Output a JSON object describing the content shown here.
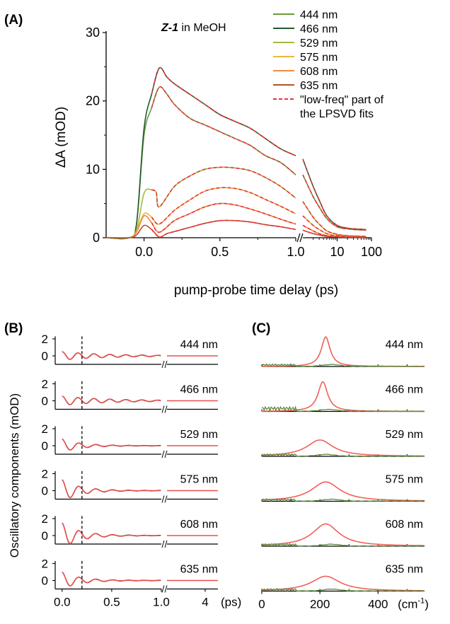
{
  "figure": {
    "panel_a_label": "(A)",
    "panel_b_label": "(B)",
    "panel_c_label": "(C)"
  },
  "chart_data": [
    {
      "type": "line",
      "panel": "A",
      "annotation_bold": "Z-1",
      "annotation_rest": " in MeOH",
      "xlabel": "pump-probe time delay (ps)",
      "ylabel": "ΔA (mOD)",
      "x_ticks_linear": [
        "0.0",
        "0.5",
        "1.0"
      ],
      "x_ticks_log": [
        "10",
        "100"
      ],
      "y_ticks": [
        "0",
        "10",
        "20",
        "30"
      ],
      "ylim": [
        0,
        30
      ],
      "xlim_linear": [
        -0.25,
        1.0
      ],
      "xlim_log": [
        1,
        100
      ],
      "legend": [
        "444 nm",
        "466 nm",
        "529 nm",
        "575 nm",
        "608 nm",
        "635 nm"
      ],
      "fit_legend": [
        "\"low-freq\" part of",
        "the LPSVD fits"
      ],
      "colors": {
        "444 nm": "#6b9a3a",
        "466 nm": "#1f5c2e",
        "529 nm": "#a8b83a",
        "575 nm": "#e8b83a",
        "608 nm": "#f08a3c",
        "635 nm": "#b5532c",
        "fit": "#e8323c"
      },
      "series": [
        {
          "name": "444 nm",
          "linear": [
            [
              -0.25,
              0
            ],
            [
              -0.1,
              0
            ],
            [
              -0.05,
              2
            ],
            [
              0,
              15
            ],
            [
              0.05,
              19
            ],
            [
              0.1,
              22
            ],
            [
              0.15,
              21
            ],
            [
              0.2,
              19.5
            ],
            [
              0.3,
              17.5
            ],
            [
              0.4,
              16.5
            ],
            [
              0.5,
              15.5
            ],
            [
              0.6,
              14.5
            ],
            [
              0.7,
              13.5
            ],
            [
              0.8,
              12
            ],
            [
              0.9,
              11
            ],
            [
              1.0,
              9.2
            ]
          ],
          "log": [
            [
              1,
              9.2
            ],
            [
              2,
              6
            ],
            [
              3,
              4.5
            ],
            [
              5,
              2.8
            ],
            [
              10,
              1.6
            ],
            [
              20,
              1.3
            ],
            [
              30,
              1.2
            ],
            [
              70,
              1.1
            ]
          ]
        },
        {
          "name": "466 nm",
          "linear": [
            [
              -0.25,
              0
            ],
            [
              -0.1,
              0
            ],
            [
              -0.05,
              2
            ],
            [
              0,
              16
            ],
            [
              0.05,
              21
            ],
            [
              0.1,
              24.8
            ],
            [
              0.15,
              23.5
            ],
            [
              0.2,
              22.5
            ],
            [
              0.3,
              21
            ],
            [
              0.4,
              19.5
            ],
            [
              0.5,
              18
            ],
            [
              0.6,
              17
            ],
            [
              0.7,
              16
            ],
            [
              0.8,
              14.5
            ],
            [
              0.9,
              13
            ],
            [
              1.0,
              12
            ]
          ],
          "log": [
            [
              1,
              11.5
            ],
            [
              2,
              7.5
            ],
            [
              3,
              5.5
            ],
            [
              5,
              3.2
            ],
            [
              10,
              1.8
            ],
            [
              20,
              1.4
            ],
            [
              30,
              1.3
            ],
            [
              70,
              1.2
            ]
          ]
        },
        {
          "name": "529 nm",
          "linear": [
            [
              -0.25,
              0
            ],
            [
              -0.1,
              0
            ],
            [
              -0.05,
              1
            ],
            [
              0,
              6.5
            ],
            [
              0.05,
              7
            ],
            [
              0.08,
              6.6
            ],
            [
              0.1,
              4.5
            ],
            [
              0.2,
              7.5
            ],
            [
              0.3,
              9
            ],
            [
              0.4,
              10
            ],
            [
              0.5,
              10.3
            ],
            [
              0.6,
              10.2
            ],
            [
              0.7,
              9.8
            ],
            [
              0.8,
              8.8
            ],
            [
              0.9,
              7.5
            ],
            [
              1.0,
              5.8
            ]
          ],
          "log": [
            [
              1,
              5.3
            ],
            [
              2,
              3
            ],
            [
              3,
              2
            ],
            [
              5,
              1
            ],
            [
              10,
              0.5
            ],
            [
              20,
              0.3
            ],
            [
              70,
              0.2
            ]
          ]
        },
        {
          "name": "575 nm",
          "linear": [
            [
              -0.25,
              0
            ],
            [
              -0.1,
              0
            ],
            [
              -0.05,
              1
            ],
            [
              0,
              3.5
            ],
            [
              0.05,
              3
            ],
            [
              0.1,
              2
            ],
            [
              0.2,
              4
            ],
            [
              0.3,
              5.5
            ],
            [
              0.4,
              6.8
            ],
            [
              0.5,
              7.3
            ],
            [
              0.6,
              7.2
            ],
            [
              0.7,
              6.6
            ],
            [
              0.8,
              5.6
            ],
            [
              0.9,
              4.6
            ],
            [
              1.0,
              3.5
            ]
          ],
          "log": [
            [
              1,
              3.2
            ],
            [
              2,
              1.8
            ],
            [
              3,
              1.2
            ],
            [
              5,
              0.6
            ],
            [
              10,
              0.3
            ],
            [
              70,
              0.1
            ]
          ]
        },
        {
          "name": "608 nm",
          "linear": [
            [
              -0.25,
              0
            ],
            [
              -0.1,
              0
            ],
            [
              -0.05,
              0.8
            ],
            [
              0,
              3.2
            ],
            [
              0.05,
              2.2
            ],
            [
              0.1,
              0.8
            ],
            [
              0.2,
              2.5
            ],
            [
              0.3,
              3.5
            ],
            [
              0.4,
              4.5
            ],
            [
              0.5,
              5
            ],
            [
              0.6,
              4.8
            ],
            [
              0.7,
              4.2
            ],
            [
              0.8,
              3.5
            ],
            [
              0.9,
              2.7
            ],
            [
              1.0,
              2
            ]
          ],
          "log": [
            [
              1,
              1.8
            ],
            [
              2,
              1
            ],
            [
              3,
              0.6
            ],
            [
              5,
              0.3
            ],
            [
              10,
              0.15
            ],
            [
              70,
              0.1
            ]
          ]
        },
        {
          "name": "635 nm",
          "linear": [
            [
              -0.25,
              0
            ],
            [
              -0.1,
              0
            ],
            [
              -0.05,
              0.4
            ],
            [
              0,
              1.8
            ],
            [
              0.05,
              1.2
            ],
            [
              0.1,
              0.1
            ],
            [
              0.15,
              0.6
            ],
            [
              0.2,
              0.9
            ],
            [
              0.3,
              1.5
            ],
            [
              0.4,
              2.1
            ],
            [
              0.5,
              2.5
            ],
            [
              0.6,
              2.5
            ],
            [
              0.7,
              2.3
            ],
            [
              0.8,
              1.9
            ],
            [
              0.9,
              1.6
            ],
            [
              1.0,
              1.2
            ]
          ],
          "log": [
            [
              1,
              1.1
            ],
            [
              2,
              0.6
            ],
            [
              3,
              0.4
            ],
            [
              5,
              0.2
            ],
            [
              10,
              0.1
            ],
            [
              70,
              0.05
            ]
          ]
        }
      ]
    },
    {
      "type": "line",
      "panel": "B",
      "ylabel": "Oscillatory components (mOD)",
      "x_ticks_linear": [
        "0.0",
        "0.5",
        "1.0"
      ],
      "x_ticks_log": [
        "4"
      ],
      "x_unit": "(ps)",
      "y_ticks": [
        "0",
        "2"
      ],
      "ylim": [
        -1,
        2
      ],
      "dashed_line_x": 0.2,
      "rows": [
        "444 nm",
        "466 nm",
        "529 nm",
        "575 nm",
        "608 nm",
        "635 nm"
      ],
      "amplitudes": [
        0.5,
        0.55,
        0.8,
        1.3,
        1.5,
        1.0
      ],
      "colors": {
        "data": "#000000",
        "fit": "#e8504c"
      }
    },
    {
      "type": "line",
      "panel": "C",
      "x_ticks": [
        "0",
        "200",
        "400"
      ],
      "x_unit": "(cm",
      "x_unit_sup": "-1",
      "x_unit_close": ")",
      "xlim": [
        0,
        560
      ],
      "rows": [
        "444 nm",
        "466 nm",
        "529 nm",
        "575 nm",
        "608 nm",
        "635 nm"
      ],
      "peaks": [
        {
          "center": 220,
          "width": 18,
          "height": 1.0
        },
        {
          "center": 210,
          "width": 20,
          "height": 1.0
        },
        {
          "center": 200,
          "width": 55,
          "height": 0.55
        },
        {
          "center": 220,
          "width": 60,
          "height": 0.65
        },
        {
          "center": 220,
          "width": 55,
          "height": 0.75
        },
        {
          "center": 220,
          "width": 60,
          "height": 0.5
        }
      ],
      "colors": {
        "peak": "#f0605a",
        "data": "#5a8a3a"
      }
    }
  ]
}
